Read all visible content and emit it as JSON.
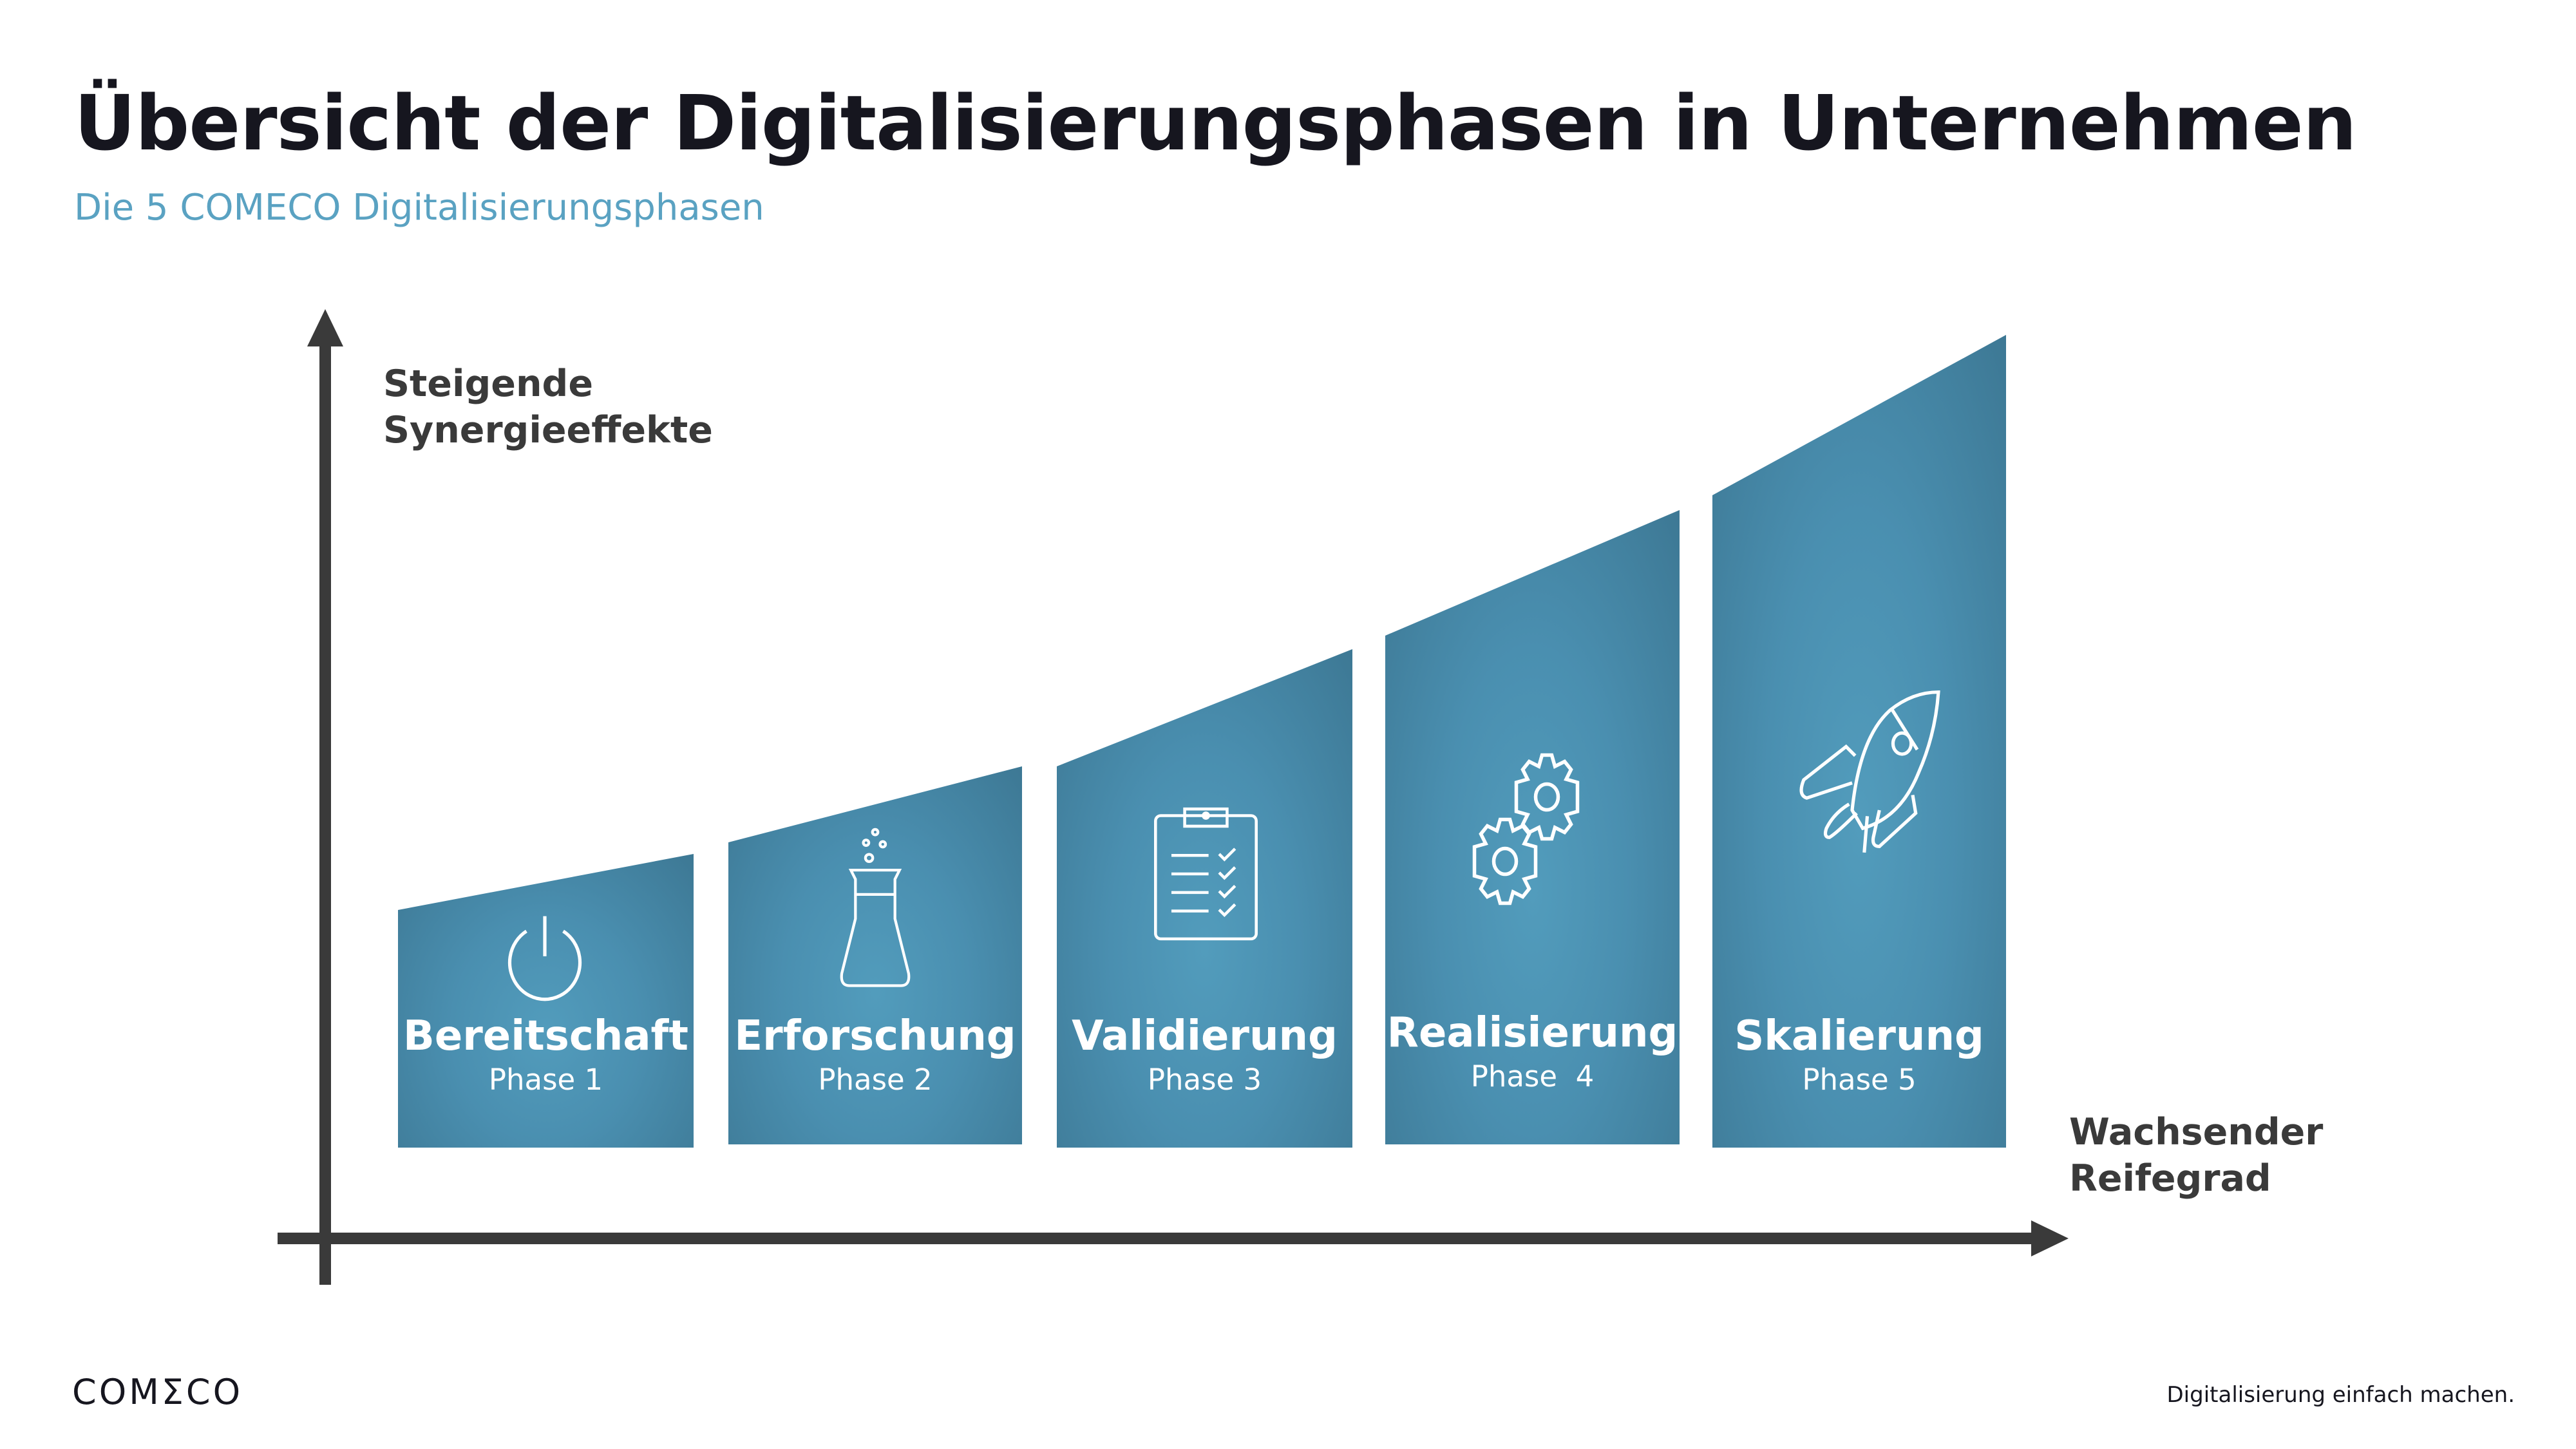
{
  "header": {
    "title": "Übersicht der Digitalisierungsphasen in Unternehmen",
    "subtitle": "Die 5 COMECO Digitalisierungsphasen"
  },
  "axes": {
    "y_label_line1": "Steigende",
    "y_label_line2": "Synergieeffekte",
    "x_label_line1": "Wachsender",
    "x_label_line2": "Reifegrad",
    "color": "#3a3a3a"
  },
  "phases": [
    {
      "name": "Bereitschaft",
      "phase": "Phase 1",
      "icon": "power-icon"
    },
    {
      "name": "Erforschung",
      "phase": "Phase 2",
      "icon": "flask-icon"
    },
    {
      "name": "Validierung",
      "phase": "Phase 3",
      "icon": "clipboard-checklist-icon"
    },
    {
      "name": "Realisierung",
      "phase": "Phase  4",
      "icon": "gears-icon"
    },
    {
      "name": "Skalierung",
      "phase": "Phase 5",
      "icon": "rocket-icon"
    }
  ],
  "colors": {
    "bar_light": "#529cbc",
    "bar_dark": "#3d7894",
    "subtitle": "#5aa2c2"
  },
  "footer": {
    "logo": "COMΣCO",
    "tagline": "Digitalisierung einfach machen."
  }
}
